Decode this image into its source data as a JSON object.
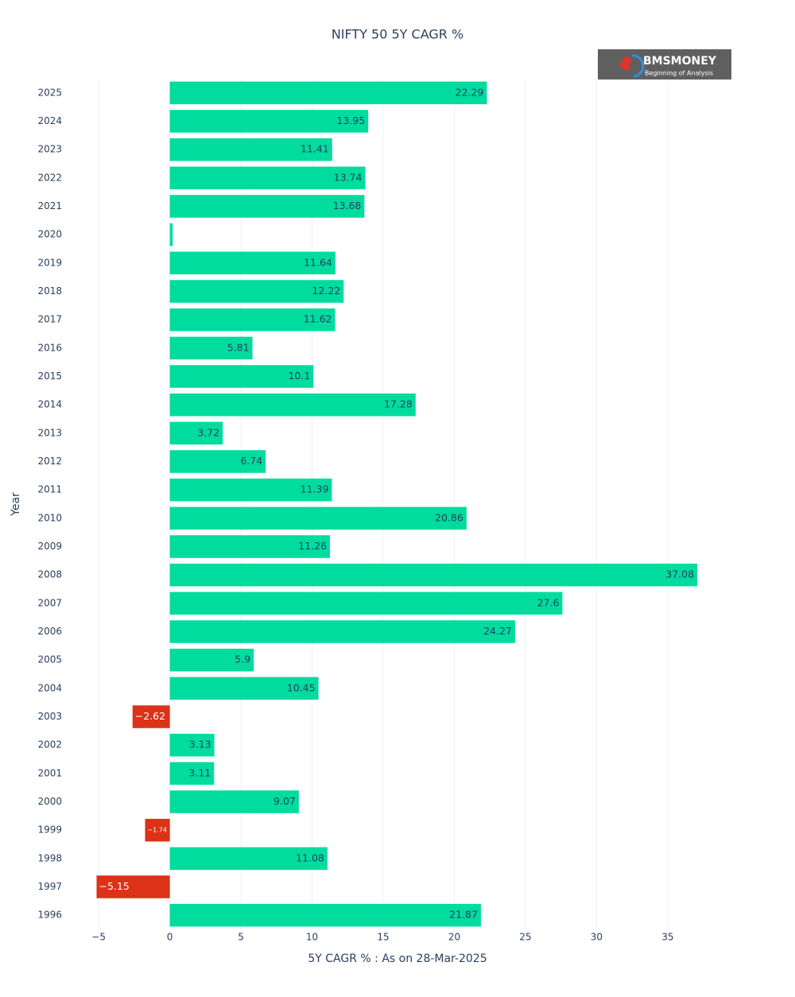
{
  "chart_data": {
    "type": "hbar",
    "title": "NIFTY 50 5Y CAGR %",
    "x_label": "5Y CAGR % : As on 28-Mar-2025",
    "y_label": "Year",
    "logo_text": "BMSMONEY",
    "logo_tagline": "Beginning of Analysis",
    "categories": [
      "2025",
      "2024",
      "2023",
      "2022",
      "2021",
      "2020",
      "2019",
      "2018",
      "2017",
      "2016",
      "2015",
      "2014",
      "2013",
      "2012",
      "2011",
      "2010",
      "2009",
      "2008",
      "2007",
      "2006",
      "2005",
      "2004",
      "2003",
      "2002",
      "2001",
      "2000",
      "1999",
      "1998",
      "1997",
      "1996"
    ],
    "values": [
      22.29,
      13.95,
      11.41,
      13.74,
      13.68,
      0.2,
      11.64,
      12.22,
      11.62,
      5.81,
      10.1,
      17.28,
      3.72,
      6.74,
      11.39,
      20.86,
      11.26,
      37.08,
      27.6,
      24.27,
      5.9,
      10.45,
      -2.62,
      3.13,
      3.11,
      9.07,
      -1.74,
      11.08,
      -5.15,
      21.87
    ],
    "value_labels": [
      "22.29",
      "13.95",
      "11.41",
      "13.74",
      "13.68",
      null,
      "11.64",
      "12.22",
      "11.62",
      "5.81",
      "10.1",
      "17.28",
      "3.72",
      "6.74",
      "11.39",
      "20.86",
      "11.26",
      "37.08",
      "27.6",
      "24.27",
      "5.9",
      "10.45",
      "−2.62",
      "3.13",
      "3.11",
      "9.07",
      "−1.74",
      "11.08",
      "−5.15",
      "21.87"
    ],
    "color": "#00dc9e",
    "negative_color": "#dc3218",
    "xlim": [
      -7.3,
      39.2
    ],
    "xticks": [
      {
        "value": -5,
        "label": "−5"
      },
      0,
      5,
      10,
      15,
      20,
      25,
      30,
      35
    ],
    "grid": true
  }
}
